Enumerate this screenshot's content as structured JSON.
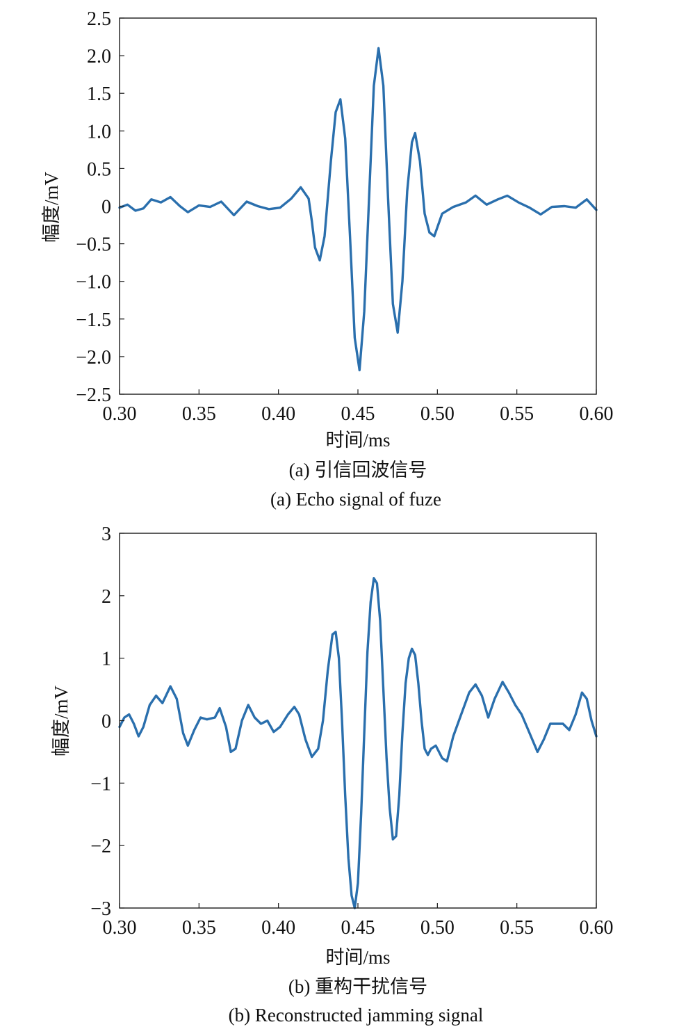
{
  "colors": {
    "line": "#2a6fad",
    "axis": "#1a1a1a"
  },
  "chart_data": [
    {
      "type": "line",
      "caption_cn": "(a) 引信回波信号",
      "caption_en": "(a) Echo signal of fuze",
      "xlabel": "时间/ms",
      "ylabel": "幅度/mV",
      "xlim": [
        0.3,
        0.6
      ],
      "ylim": [
        -2.5,
        2.5
      ],
      "x_ticks": [
        "0.30",
        "0.35",
        "0.40",
        "0.45",
        "0.50",
        "0.55",
        "0.60"
      ],
      "y_ticks": [
        "2.5",
        "2.0",
        "1.5",
        "1.0",
        "0.5",
        "0",
        "−0.5",
        "−1.0",
        "−1.5",
        "−2.0",
        "−2.5"
      ],
      "grid": false,
      "legend": "none",
      "series": [
        {
          "x": [
            0.3,
            0.305,
            0.31,
            0.315,
            0.32,
            0.326,
            0.332,
            0.338,
            0.343,
            0.35,
            0.357,
            0.364,
            0.372,
            0.38,
            0.387,
            0.394,
            0.401,
            0.408,
            0.414,
            0.419,
            0.421,
            0.423,
            0.426,
            0.429,
            0.433,
            0.436,
            0.439,
            0.442,
            0.445,
            0.448,
            0.451,
            0.454,
            0.457,
            0.46,
            0.463,
            0.466,
            0.469,
            0.472,
            0.475,
            0.478,
            0.481,
            0.484,
            0.486,
            0.489,
            0.492,
            0.495,
            0.498,
            0.503,
            0.51,
            0.518,
            0.524,
            0.531,
            0.538,
            0.544,
            0.551,
            0.558,
            0.565,
            0.572,
            0.58,
            0.587,
            0.594,
            0.6
          ],
          "y": [
            -0.02,
            0.02,
            -0.06,
            -0.03,
            0.09,
            0.05,
            0.12,
            0.0,
            -0.08,
            0.01,
            -0.01,
            0.06,
            -0.12,
            0.06,
            0.0,
            -0.04,
            -0.02,
            0.1,
            0.25,
            0.1,
            -0.2,
            -0.55,
            -0.72,
            -0.4,
            0.6,
            1.25,
            1.42,
            0.9,
            -0.4,
            -1.75,
            -2.18,
            -1.4,
            0.1,
            1.6,
            2.1,
            1.6,
            0.1,
            -1.3,
            -1.68,
            -1.0,
            0.2,
            0.85,
            0.97,
            0.6,
            -0.1,
            -0.35,
            -0.4,
            -0.1,
            -0.01,
            0.05,
            0.14,
            0.02,
            0.09,
            0.14,
            0.05,
            -0.02,
            -0.11,
            -0.01,
            0.0,
            -0.02,
            0.09,
            -0.05
          ]
        }
      ]
    },
    {
      "type": "line",
      "caption_cn": "(b) 重构干扰信号",
      "caption_en": "(b) Reconstructed jamming signal",
      "xlabel": "时间/ms",
      "ylabel": "幅度/mV",
      "xlim": [
        0.3,
        0.6
      ],
      "ylim": [
        -3,
        3
      ],
      "x_ticks": [
        "0.30",
        "0.35",
        "0.40",
        "0.45",
        "0.50",
        "0.55",
        "0.60"
      ],
      "y_ticks": [
        "3",
        "2",
        "1",
        "0",
        "−1",
        "−2",
        "−3"
      ],
      "grid": false,
      "legend": "none",
      "series": [
        {
          "x": [
            0.3,
            0.303,
            0.306,
            0.309,
            0.312,
            0.315,
            0.319,
            0.323,
            0.327,
            0.332,
            0.336,
            0.34,
            0.343,
            0.347,
            0.351,
            0.355,
            0.36,
            0.363,
            0.367,
            0.37,
            0.373,
            0.377,
            0.381,
            0.385,
            0.389,
            0.393,
            0.397,
            0.401,
            0.406,
            0.41,
            0.413,
            0.417,
            0.421,
            0.425,
            0.428,
            0.431,
            0.434,
            0.436,
            0.438,
            0.44,
            0.442,
            0.444,
            0.446,
            0.448,
            0.45,
            0.452,
            0.454,
            0.456,
            0.458,
            0.46,
            0.462,
            0.464,
            0.466,
            0.468,
            0.47,
            0.472,
            0.474,
            0.476,
            0.478,
            0.48,
            0.482,
            0.484,
            0.486,
            0.488,
            0.49,
            0.492,
            0.494,
            0.496,
            0.499,
            0.503,
            0.506,
            0.51,
            0.515,
            0.52,
            0.524,
            0.528,
            0.532,
            0.536,
            0.541,
            0.545,
            0.549,
            0.553,
            0.558,
            0.563,
            0.567,
            0.571,
            0.575,
            0.579,
            0.583,
            0.587,
            0.591,
            0.594,
            0.597,
            0.6
          ],
          "y": [
            -0.1,
            0.05,
            0.1,
            -0.05,
            -0.25,
            -0.1,
            0.25,
            0.4,
            0.28,
            0.55,
            0.35,
            -0.2,
            -0.4,
            -0.15,
            0.05,
            0.02,
            0.05,
            0.2,
            -0.1,
            -0.5,
            -0.45,
            0.0,
            0.25,
            0.05,
            -0.05,
            0.0,
            -0.18,
            -0.1,
            0.1,
            0.22,
            0.1,
            -0.3,
            -0.58,
            -0.45,
            0.0,
            0.8,
            1.38,
            1.42,
            1.0,
            0.0,
            -1.2,
            -2.2,
            -2.8,
            -3.0,
            -2.6,
            -1.5,
            -0.2,
            1.1,
            1.9,
            2.28,
            2.2,
            1.6,
            0.5,
            -0.6,
            -1.4,
            -1.9,
            -1.85,
            -1.2,
            -0.2,
            0.6,
            1.0,
            1.15,
            1.05,
            0.6,
            0.0,
            -0.45,
            -0.55,
            -0.45,
            -0.4,
            -0.6,
            -0.65,
            -0.25,
            0.1,
            0.45,
            0.58,
            0.4,
            0.05,
            0.35,
            0.62,
            0.45,
            0.25,
            0.1,
            -0.2,
            -0.5,
            -0.3,
            -0.05,
            -0.05,
            -0.05,
            -0.15,
            0.1,
            0.45,
            0.35,
            0.0,
            -0.25
          ]
        }
      ]
    }
  ]
}
